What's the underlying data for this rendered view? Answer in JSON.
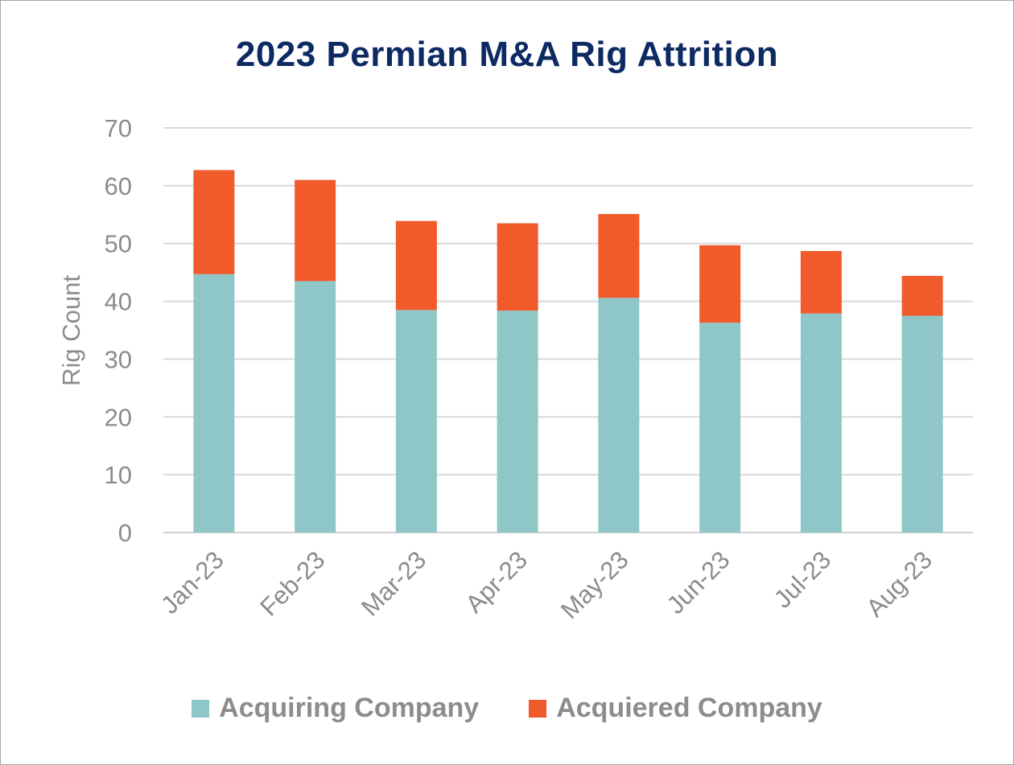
{
  "chart_data": {
    "type": "bar",
    "stacked": true,
    "title": "2023 Permian M&A Rig Attrition",
    "xlabel": "",
    "ylabel": "Rig Count",
    "ylim": [
      0,
      70
    ],
    "yticks": [
      0,
      10,
      20,
      30,
      40,
      50,
      60,
      70
    ],
    "grid": true,
    "legend_position": "bottom",
    "categories": [
      "Jan-23",
      "Feb-23",
      "Mar-23",
      "Apr-23",
      "May-23",
      "Jun-23",
      "Jul-23",
      "Aug-23"
    ],
    "series": [
      {
        "name": "Acquiring Company",
        "color": "#8fc6c7",
        "values": [
          44.7,
          43.5,
          38.5,
          38.4,
          40.6,
          36.3,
          37.9,
          37.5
        ]
      },
      {
        "name": "Acquiered Company",
        "color": "#f15a2b",
        "values": [
          18.0,
          17.5,
          15.4,
          15.1,
          14.5,
          13.4,
          10.8,
          6.9
        ]
      }
    ],
    "colors": {
      "title": "#0d2a63",
      "axis_text": "#8c8c8c",
      "gridline": "#d9d9d9"
    }
  }
}
